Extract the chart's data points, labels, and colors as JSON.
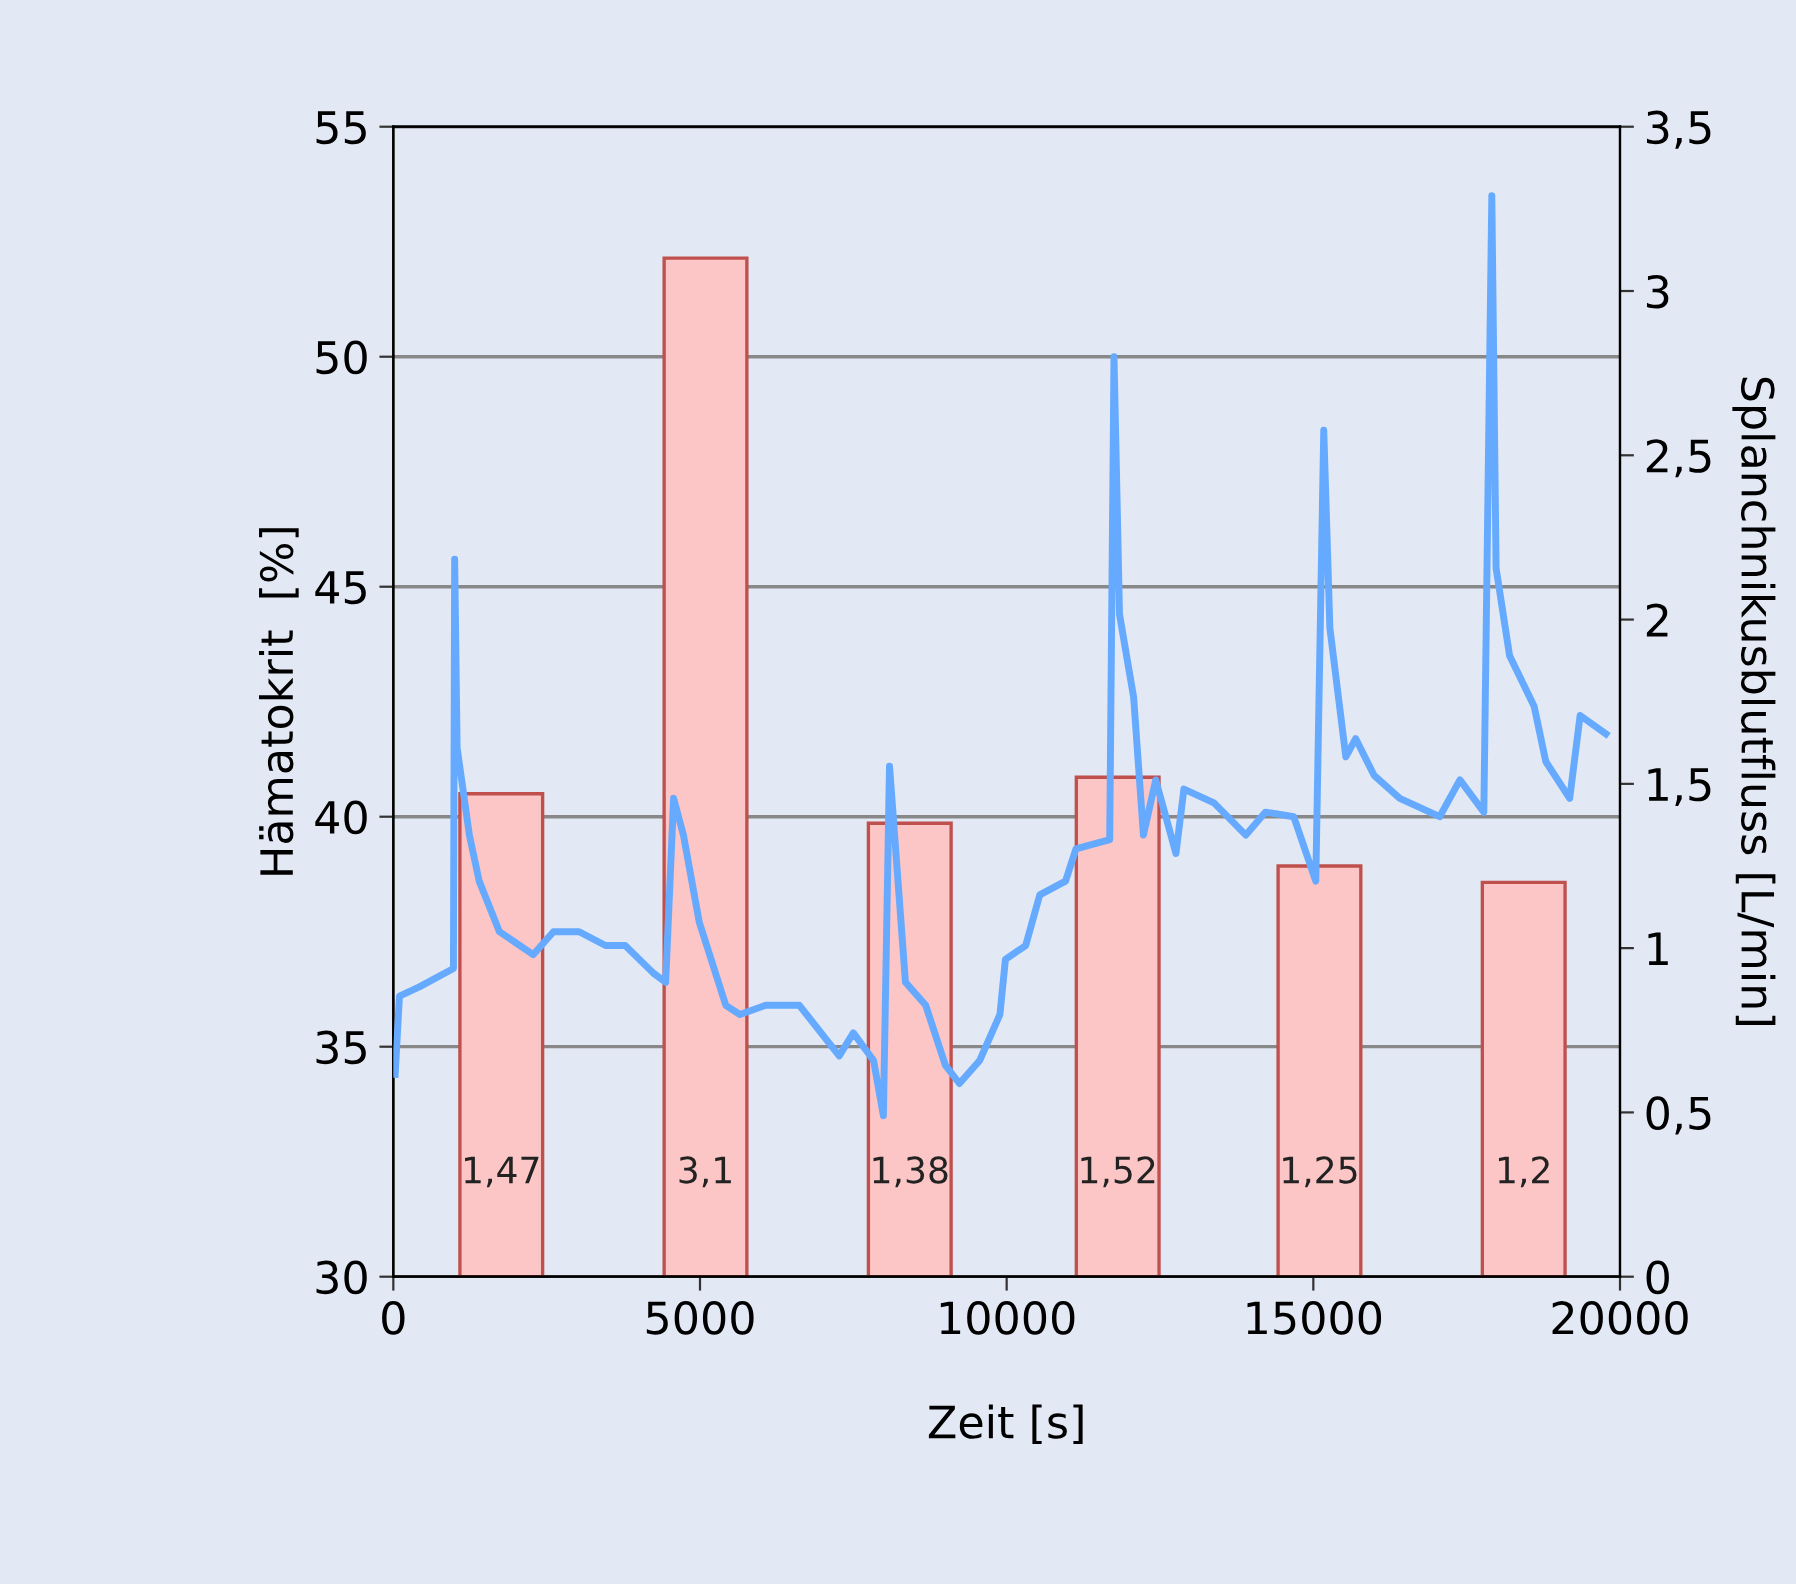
{
  "chart_data": {
    "type": "line",
    "xlabel": "Zeit [s]",
    "ylabel": "Hämatokrit  [%]",
    "y2label": "Splanchnikusblutfluss [L/min]",
    "xlim": [
      0,
      20000
    ],
    "xticks": [
      0,
      5000,
      10000,
      15000,
      20000
    ],
    "ylim": [
      30,
      55
    ],
    "yticks": [
      30,
      35,
      40,
      45,
      50,
      55
    ],
    "y2lim": [
      0,
      3.5
    ],
    "y2ticks": [
      0,
      {
        "value": 0.5,
        "label": "0,5"
      },
      1,
      {
        "value": 1.5,
        "label": "1,5"
      },
      2,
      {
        "value": 2.5,
        "label": "2,5"
      },
      3,
      {
        "value": 3.5,
        "label": "3,5"
      }
    ],
    "grid": "y",
    "series": [
      {
        "type": "bar",
        "axis": "y2",
        "color": "#fcc6c6",
        "x": [
          1760,
          5090,
          8420,
          11810,
          15100,
          18430
        ],
        "values": [
          1.47,
          3.1,
          1.38,
          1.52,
          1.25,
          1.2
        ],
        "value_labels": [
          "1,47",
          "3,1",
          "1,38",
          "1,52",
          "1,25",
          "1,2"
        ]
      },
      {
        "color": "#66aaff",
        "x": [
          30,
          100,
          424,
          980,
          1000,
          1040,
          1240,
          1400,
          1730,
          2280,
          2610,
          3030,
          3460,
          3780,
          4240,
          4440,
          4570,
          4730,
          4990,
          5420,
          5650,
          6070,
          6620,
          7270,
          7500,
          7830,
          7990,
          8090,
          8350,
          8680,
          9000,
          9230,
          9560,
          9890,
          9980,
          10310,
          10540,
          10960,
          11130,
          11680,
          11750,
          11840,
          12070,
          12230,
          12430,
          12760,
          12890,
          13380,
          13900,
          14220,
          14680,
          15040,
          15170,
          15270,
          15530,
          15690,
          15990,
          16410,
          17060,
          17390,
          17780,
          17910,
          17980,
          18200,
          18600,
          18790,
          19180,
          19350,
          19770
        ],
        "values": [
          34.4,
          36.1,
          36.3,
          36.7,
          45.6,
          41.5,
          39.6,
          38.6,
          37.5,
          37.0,
          37.5,
          37.5,
          37.2,
          37.2,
          36.6,
          36.4,
          40.4,
          39.6,
          37.7,
          35.9,
          35.7,
          35.9,
          35.9,
          34.8,
          35.3,
          34.7,
          33.5,
          41.1,
          36.4,
          35.9,
          34.6,
          34.2,
          34.7,
          35.7,
          36.9,
          37.2,
          38.3,
          38.6,
          39.3,
          39.5,
          50.0,
          44.4,
          42.6,
          39.6,
          40.8,
          39.2,
          40.6,
          40.3,
          39.6,
          40.1,
          40.0,
          38.6,
          48.4,
          44.1,
          41.3,
          41.7,
          40.9,
          40.4,
          40.0,
          40.8,
          40.1,
          53.5,
          45.4,
          43.5,
          42.4,
          41.2,
          40.4,
          42.2,
          41.8
        ]
      }
    ]
  }
}
